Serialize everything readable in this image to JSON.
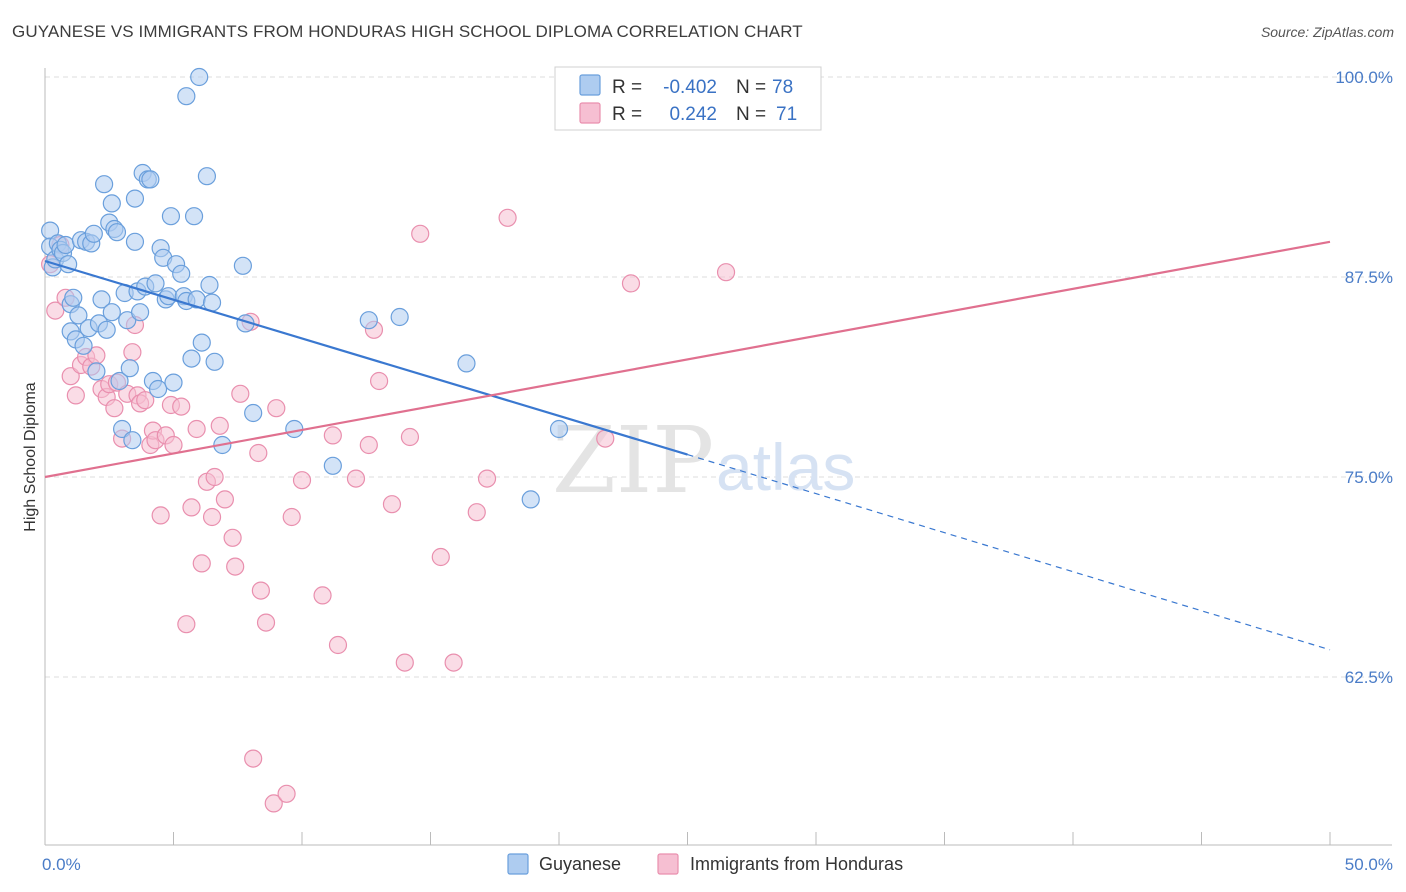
{
  "title": "GUYANESE VS IMMIGRANTS FROM HONDURAS HIGH SCHOOL DIPLOMA CORRELATION CHART",
  "source": "Source: ZipAtlas.com",
  "watermark": {
    "part1": "ZIP",
    "part2": "atlas"
  },
  "colors": {
    "guyanese_fill": "#aeccf0",
    "guyanese_stroke": "#6a9fdc",
    "guyanese_line": "#3a78d0",
    "honduras_fill": "#f6bfd2",
    "honduras_stroke": "#e98fae",
    "honduras_line": "#e0708f",
    "tick_label": "#4a7cc7",
    "grid": "#dddddd"
  },
  "legend": {
    "rows": [
      {
        "r_label": "R = ",
        "r_value": "-0.402",
        "n_label": "N = ",
        "n_value": "78"
      },
      {
        "r_label": "R = ",
        "r_value": "0.242",
        "n_label": "N = ",
        "n_value": "71"
      }
    ]
  },
  "chart_data": {
    "type": "scatter",
    "xlabel": "",
    "ylabel": "High School Diploma",
    "xlim": [
      0,
      50
    ],
    "ylim": [
      52,
      102
    ],
    "x_tick_labels": [
      {
        "value": 0,
        "label": "0.0%"
      },
      {
        "value": 50,
        "label": "50.0%"
      }
    ],
    "y_tick_labels": [
      {
        "value": 62.5,
        "label": "62.5%"
      },
      {
        "value": 75,
        "label": "75.0%"
      },
      {
        "value": 87.5,
        "label": "87.5%"
      },
      {
        "value": 100,
        "label": "100.0%"
      }
    ],
    "grid": true,
    "legend_position": "top-center",
    "series": [
      {
        "name": "Guyanese",
        "r": -0.402,
        "n": 78,
        "trend": {
          "x": [
            0,
            25
          ],
          "y": [
            88.5,
            76.4
          ],
          "dashed_extension": {
            "x": [
              25,
              50
            ],
            "y": [
              76.4,
              64.2
            ]
          }
        },
        "points": [
          [
            0.2,
            90.4
          ],
          [
            0.2,
            89.4
          ],
          [
            0.3,
            88.1
          ],
          [
            0.4,
            88.6
          ],
          [
            0.5,
            89.6
          ],
          [
            0.6,
            89.2
          ],
          [
            0.7,
            89.0
          ],
          [
            0.8,
            89.5
          ],
          [
            0.9,
            88.3
          ],
          [
            1.0,
            85.8
          ],
          [
            1.0,
            84.1
          ],
          [
            1.1,
            86.2
          ],
          [
            1.2,
            83.6
          ],
          [
            1.3,
            85.1
          ],
          [
            1.4,
            89.8
          ],
          [
            1.5,
            83.2
          ],
          [
            1.6,
            89.7
          ],
          [
            1.7,
            84.3
          ],
          [
            1.8,
            89.6
          ],
          [
            1.9,
            90.2
          ],
          [
            2.0,
            81.6
          ],
          [
            2.1,
            84.6
          ],
          [
            2.2,
            86.1
          ],
          [
            2.3,
            93.3
          ],
          [
            2.4,
            84.2
          ],
          [
            2.5,
            90.9
          ],
          [
            2.6,
            85.3
          ],
          [
            2.6,
            92.1
          ],
          [
            2.7,
            90.5
          ],
          [
            2.8,
            90.3
          ],
          [
            2.9,
            81.0
          ],
          [
            3.0,
            78.0
          ],
          [
            3.1,
            86.5
          ],
          [
            3.2,
            84.8
          ],
          [
            3.3,
            81.8
          ],
          [
            3.4,
            77.3
          ],
          [
            3.5,
            89.7
          ],
          [
            3.5,
            92.4
          ],
          [
            3.6,
            86.6
          ],
          [
            3.7,
            85.3
          ],
          [
            3.8,
            94.0
          ],
          [
            3.9,
            86.9
          ],
          [
            4.0,
            93.6
          ],
          [
            4.1,
            93.6
          ],
          [
            4.2,
            81.0
          ],
          [
            4.3,
            87.1
          ],
          [
            4.4,
            80.5
          ],
          [
            4.5,
            89.3
          ],
          [
            4.6,
            88.7
          ],
          [
            4.7,
            86.1
          ],
          [
            4.8,
            86.3
          ],
          [
            4.9,
            91.3
          ],
          [
            5.0,
            80.9
          ],
          [
            5.1,
            88.3
          ],
          [
            5.3,
            87.7
          ],
          [
            5.4,
            86.3
          ],
          [
            5.5,
            86.0
          ],
          [
            5.5,
            98.8
          ],
          [
            5.7,
            82.4
          ],
          [
            5.8,
            91.3
          ],
          [
            5.9,
            86.1
          ],
          [
            6.0,
            100.0
          ],
          [
            6.1,
            83.4
          ],
          [
            6.3,
            93.8
          ],
          [
            6.4,
            87.0
          ],
          [
            6.5,
            85.9
          ],
          [
            6.6,
            82.2
          ],
          [
            6.9,
            77.0
          ],
          [
            7.7,
            88.2
          ],
          [
            7.8,
            84.6
          ],
          [
            8.1,
            79.0
          ],
          [
            9.7,
            78.0
          ],
          [
            11.2,
            75.7
          ],
          [
            12.6,
            84.8
          ],
          [
            13.8,
            85.0
          ],
          [
            16.4,
            82.1
          ],
          [
            18.9,
            73.6
          ],
          [
            20.0,
            78.0
          ]
        ]
      },
      {
        "name": "Immigrants from Honduras",
        "r": 0.242,
        "n": 71,
        "trend": {
          "x": [
            0,
            50
          ],
          "y": [
            75.0,
            89.7
          ]
        },
        "points": [
          [
            0.2,
            88.3
          ],
          [
            0.4,
            85.4
          ],
          [
            0.6,
            89.5
          ],
          [
            0.8,
            86.2
          ],
          [
            1.0,
            81.3
          ],
          [
            1.2,
            80.1
          ],
          [
            1.4,
            82.0
          ],
          [
            1.6,
            82.5
          ],
          [
            1.8,
            81.9
          ],
          [
            2.0,
            82.6
          ],
          [
            2.2,
            80.5
          ],
          [
            2.4,
            80.0
          ],
          [
            2.5,
            80.8
          ],
          [
            2.7,
            79.3
          ],
          [
            2.8,
            80.9
          ],
          [
            3.0,
            77.4
          ],
          [
            3.2,
            80.2
          ],
          [
            3.4,
            82.8
          ],
          [
            3.5,
            84.5
          ],
          [
            3.6,
            80.1
          ],
          [
            3.7,
            79.6
          ],
          [
            3.9,
            79.8
          ],
          [
            4.1,
            77.0
          ],
          [
            4.2,
            77.9
          ],
          [
            4.3,
            77.3
          ],
          [
            4.5,
            72.6
          ],
          [
            4.7,
            77.6
          ],
          [
            4.9,
            79.5
          ],
          [
            5.0,
            77.0
          ],
          [
            5.3,
            79.4
          ],
          [
            5.5,
            65.8
          ],
          [
            5.7,
            73.1
          ],
          [
            5.9,
            78.0
          ],
          [
            6.1,
            69.6
          ],
          [
            6.3,
            74.7
          ],
          [
            6.5,
            72.5
          ],
          [
            6.6,
            75.0
          ],
          [
            6.8,
            78.2
          ],
          [
            7.0,
            73.6
          ],
          [
            7.3,
            71.2
          ],
          [
            7.4,
            69.4
          ],
          [
            7.6,
            80.2
          ],
          [
            8.0,
            84.7
          ],
          [
            8.1,
            57.4
          ],
          [
            8.3,
            76.5
          ],
          [
            8.4,
            67.9
          ],
          [
            8.6,
            65.9
          ],
          [
            8.9,
            54.6
          ],
          [
            9.0,
            79.3
          ],
          [
            9.4,
            55.2
          ],
          [
            9.6,
            72.5
          ],
          [
            10.0,
            74.8
          ],
          [
            10.8,
            67.6
          ],
          [
            11.2,
            77.6
          ],
          [
            11.4,
            64.5
          ],
          [
            12.1,
            74.9
          ],
          [
            12.6,
            77.0
          ],
          [
            12.8,
            84.2
          ],
          [
            13.0,
            81.0
          ],
          [
            13.5,
            73.3
          ],
          [
            14.0,
            63.4
          ],
          [
            14.2,
            77.5
          ],
          [
            14.6,
            90.2
          ],
          [
            15.4,
            70.0
          ],
          [
            15.9,
            63.4
          ],
          [
            16.8,
            72.8
          ],
          [
            17.2,
            74.9
          ],
          [
            18.0,
            91.2
          ],
          [
            21.8,
            77.4
          ],
          [
            22.8,
            87.1
          ],
          [
            26.5,
            87.8
          ]
        ]
      }
    ]
  },
  "bottom_legend": [
    {
      "label": "Guyanese"
    },
    {
      "label": "Immigrants from Honduras"
    }
  ]
}
